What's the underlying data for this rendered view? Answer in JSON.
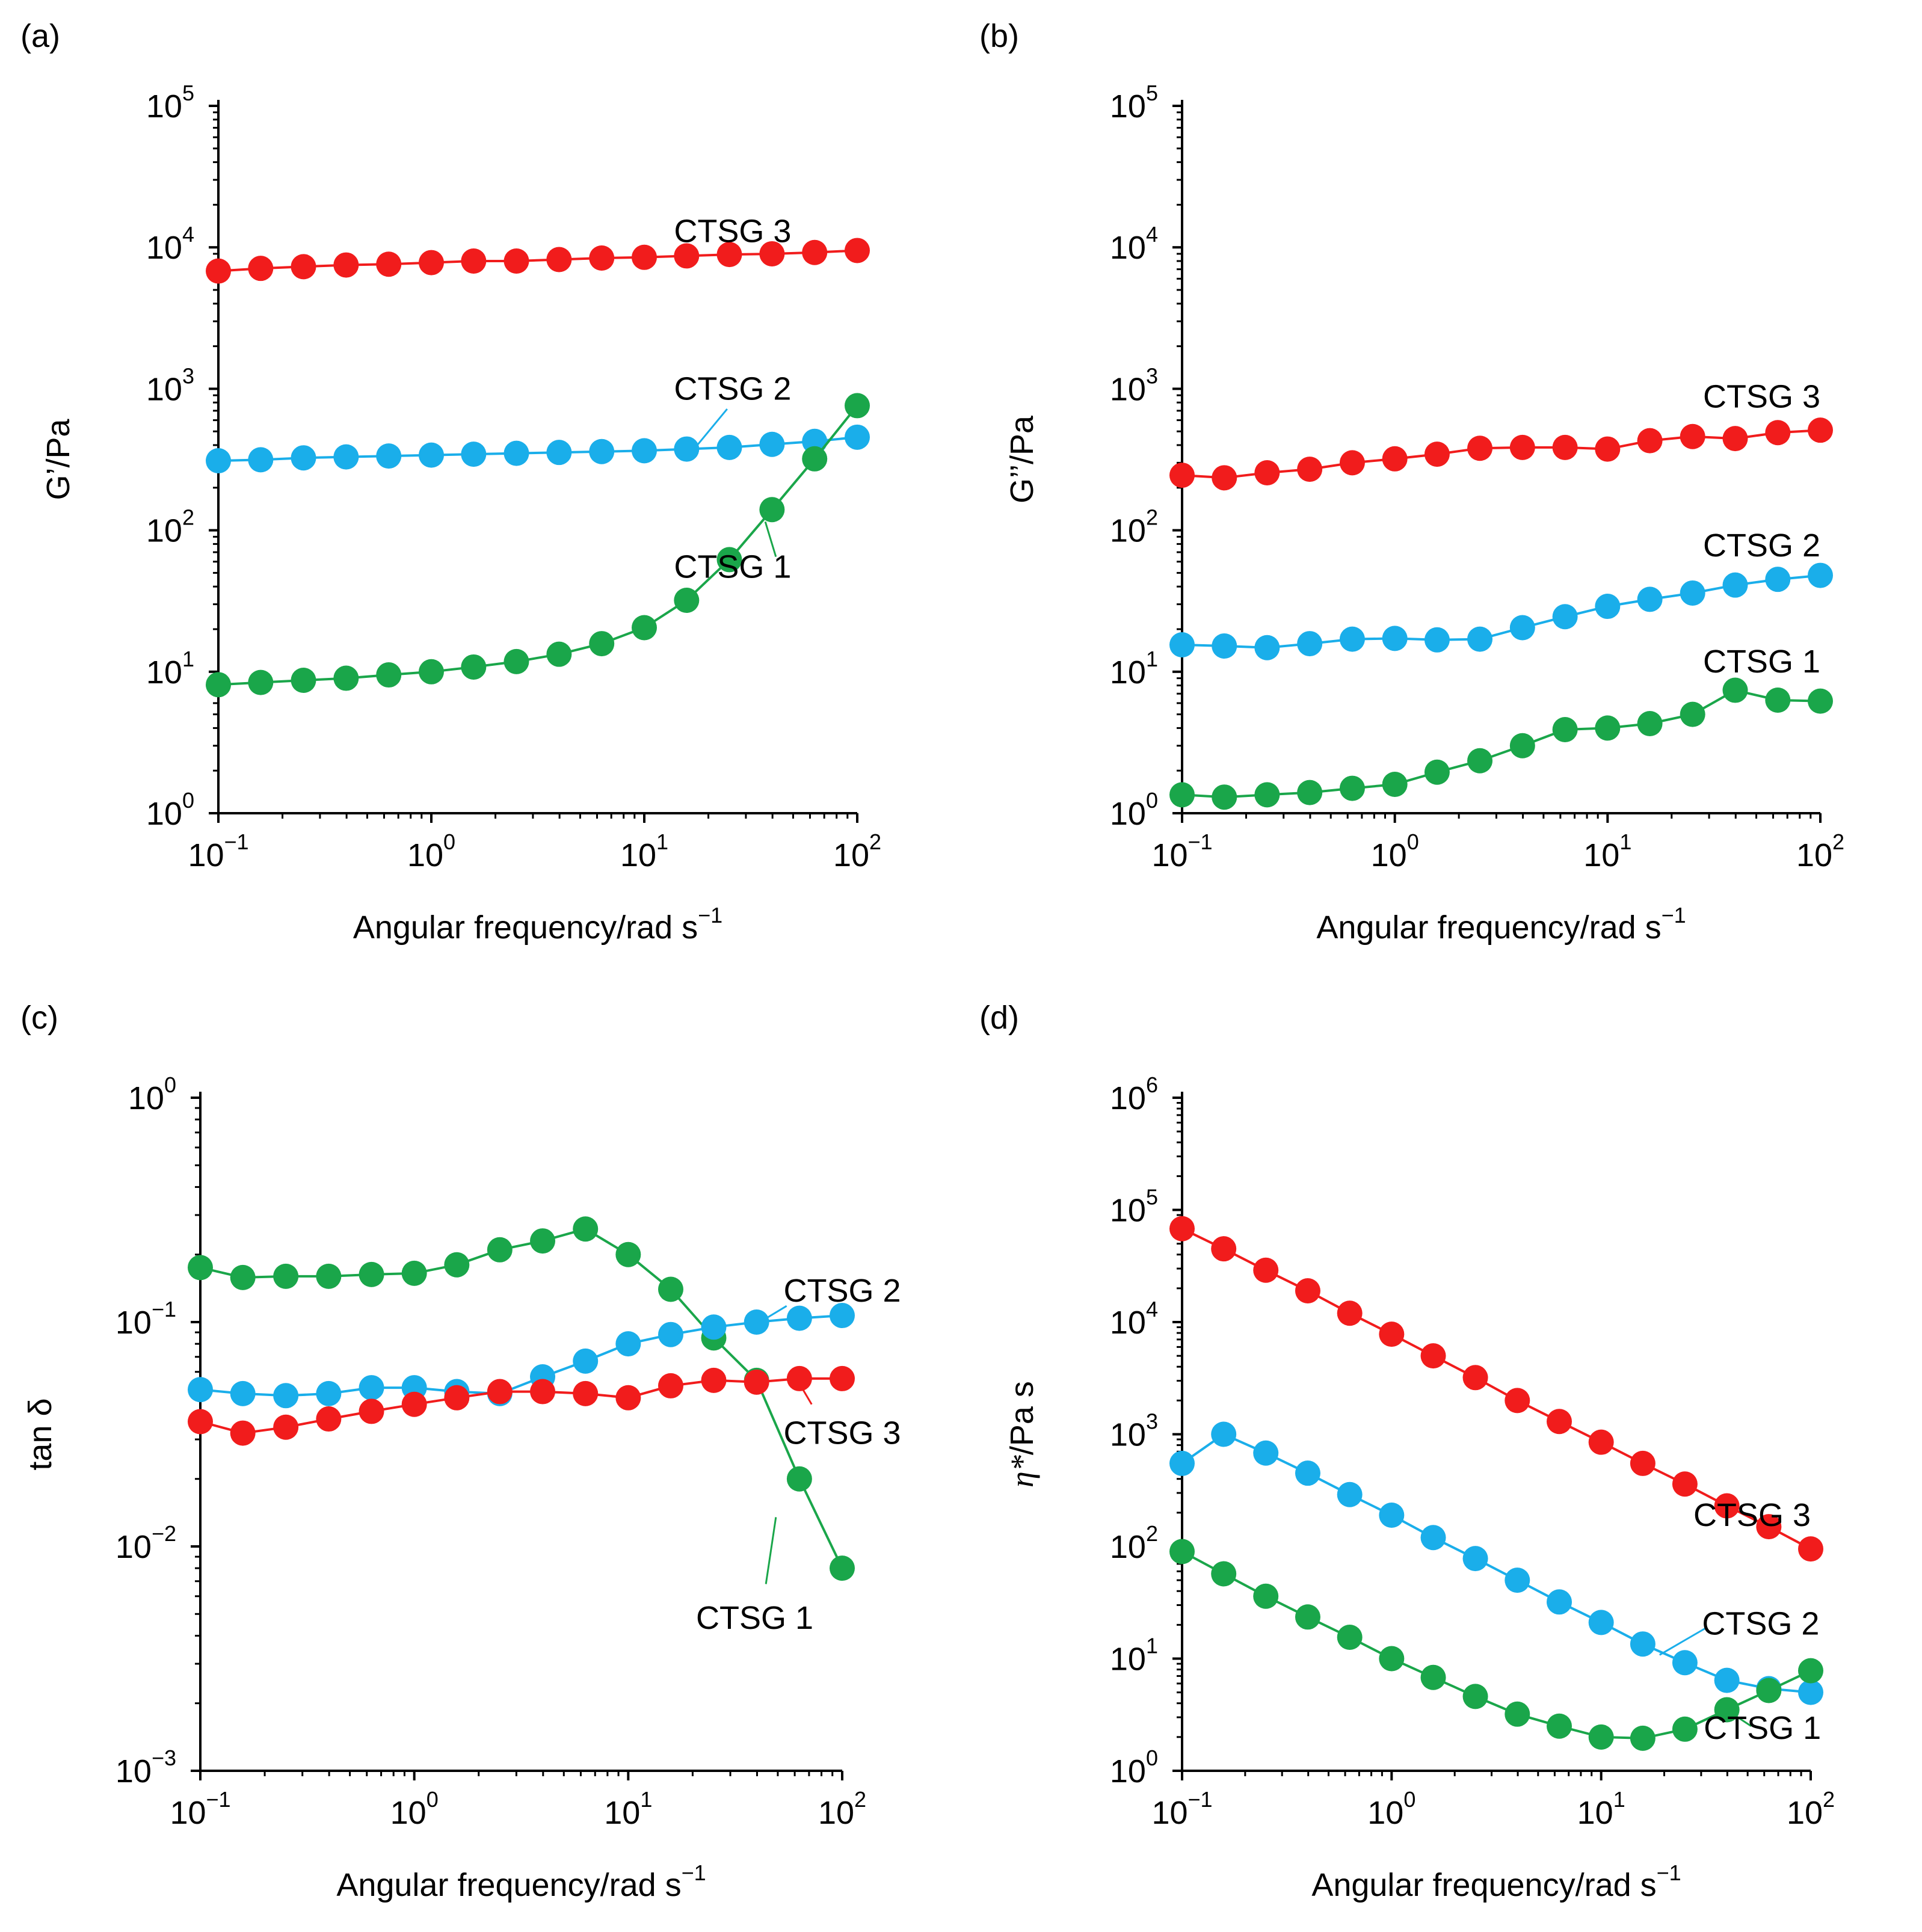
{
  "figure": {
    "colors": {
      "CTSG 1": "#1aa64a",
      "CTSG 2": "#1aaeea",
      "CTSG 3": "#f11c1c",
      "axis": "#000000"
    },
    "x_ticks": [
      {
        "base": "10",
        "exp": "−1"
      },
      {
        "base": "10",
        "exp": "0"
      },
      {
        "base": "10",
        "exp": "1"
      },
      {
        "base": "10",
        "exp": "2"
      }
    ]
  },
  "chart_data": [
    {
      "panel": "(a)",
      "type": "line",
      "xlabel": "Angular frequency/rad s",
      "xlabel_sup": "−1",
      "ylabel": "G’/Pa",
      "ylabel_italic": "",
      "x_scale": "log",
      "y_scale": "log",
      "xlim": [
        0.1,
        100
      ],
      "ylim": [
        1,
        100000
      ],
      "y_ticks": [
        {
          "base": "10",
          "exp": "0"
        },
        {
          "base": "10",
          "exp": "1"
        },
        {
          "base": "10",
          "exp": "2"
        },
        {
          "base": "10",
          "exp": "3"
        },
        {
          "base": "10",
          "exp": "4"
        },
        {
          "base": "10",
          "exp": "5"
        }
      ],
      "x": [
        0.1,
        0.158,
        0.251,
        0.398,
        0.631,
        1,
        1.58,
        2.51,
        3.98,
        6.31,
        10,
        15.8,
        25.1,
        39.8,
        63.1,
        100
      ],
      "series": [
        {
          "name": "CTSG 3",
          "values": [
            6800,
            7100,
            7300,
            7500,
            7600,
            7800,
            8000,
            8000,
            8200,
            8400,
            8500,
            8700,
            8900,
            9000,
            9200,
            9500
          ]
        },
        {
          "name": "CTSG 2",
          "values": [
            310,
            315,
            325,
            330,
            335,
            340,
            345,
            350,
            355,
            360,
            365,
            375,
            385,
            405,
            425,
            455
          ]
        },
        {
          "name": "CTSG 1",
          "values": [
            8.1,
            8.4,
            8.7,
            9.0,
            9.5,
            10.0,
            10.8,
            11.8,
            13.3,
            15.8,
            20.5,
            32,
            62,
            140,
            320,
            760
          ]
        }
      ],
      "labels": [
        {
          "series": "CTSG 3",
          "text": "CTSG 3",
          "tx": 26,
          "ty": 13000,
          "anchor": "middle"
        },
        {
          "series": "CTSG 2",
          "text": "CTSG 2",
          "tx": 26,
          "ty": 1000,
          "anchor": "middle",
          "leader": [
            [
              24.5,
              720
            ],
            [
              17.5,
              390
            ]
          ]
        },
        {
          "series": "CTSG 1",
          "text": "CTSG 1",
          "tx": 26,
          "ty": 55,
          "anchor": "middle",
          "leader": [
            [
              37,
              115
            ],
            [
              41.5,
              65
            ]
          ]
        }
      ]
    },
    {
      "panel": "(b)",
      "type": "line",
      "xlabel": "Angular frequency/rad s",
      "xlabel_sup": "−1",
      "ylabel": "G’’/Pa",
      "ylabel_italic": "",
      "x_scale": "log",
      "y_scale": "log",
      "xlim": [
        0.1,
        100
      ],
      "ylim": [
        1,
        100000
      ],
      "y_ticks": [
        {
          "base": "10",
          "exp": "0"
        },
        {
          "base": "10",
          "exp": "1"
        },
        {
          "base": "10",
          "exp": "2"
        },
        {
          "base": "10",
          "exp": "3"
        },
        {
          "base": "10",
          "exp": "4"
        },
        {
          "base": "10",
          "exp": "5"
        }
      ],
      "x": [
        0.1,
        0.158,
        0.251,
        0.398,
        0.631,
        1,
        1.58,
        2.51,
        3.98,
        6.31,
        10,
        15.8,
        25.1,
        39.8,
        63.1,
        100
      ],
      "series": [
        {
          "name": "CTSG 3",
          "values": [
            245,
            235,
            255,
            270,
            300,
            320,
            345,
            380,
            385,
            385,
            375,
            430,
            460,
            445,
            490,
            510
          ]
        },
        {
          "name": "CTSG 2",
          "values": [
            15.5,
            15.2,
            14.8,
            15.8,
            17,
            17.2,
            16.8,
            17,
            20.5,
            24.5,
            29,
            32.5,
            36,
            41,
            45,
            48
          ]
        },
        {
          "name": "CTSG 1",
          "values": [
            1.35,
            1.3,
            1.35,
            1.4,
            1.5,
            1.6,
            1.95,
            2.35,
            3.0,
            3.9,
            4.0,
            4.3,
            5.0,
            7.4,
            6.3,
            6.2
          ]
        }
      ],
      "labels": [
        {
          "series": "CTSG 3",
          "text": "CTSG 3",
          "tx": 100,
          "ty": 880,
          "anchor": "end"
        },
        {
          "series": "CTSG 2",
          "text": "CTSG 2",
          "tx": 100,
          "ty": 78,
          "anchor": "end"
        },
        {
          "series": "CTSG 1",
          "text": "CTSG 1",
          "tx": 100,
          "ty": 11.8,
          "anchor": "end"
        }
      ]
    },
    {
      "panel": "(c)",
      "type": "line",
      "xlabel": "Angular frequency/rad s",
      "xlabel_sup": "−1",
      "ylabel": "tan δ",
      "ylabel_italic": "",
      "x_scale": "log",
      "y_scale": "log",
      "xlim": [
        0.1,
        100
      ],
      "ylim": [
        0.001,
        1
      ],
      "y_ticks": [
        {
          "base": "10",
          "exp": "−3"
        },
        {
          "base": "10",
          "exp": "−2"
        },
        {
          "base": "10",
          "exp": "−1"
        },
        {
          "base": "10",
          "exp": "0"
        }
      ],
      "x": [
        0.1,
        0.158,
        0.251,
        0.398,
        0.631,
        1,
        1.58,
        2.51,
        3.98,
        6.31,
        10,
        15.8,
        25.1,
        39.8,
        63.1,
        100
      ],
      "series": [
        {
          "name": "CTSG 1",
          "values": [
            0.175,
            0.158,
            0.16,
            0.16,
            0.163,
            0.165,
            0.18,
            0.21,
            0.23,
            0.26,
            0.2,
            0.14,
            0.085,
            0.055,
            0.02,
            0.008
          ]
        },
        {
          "name": "CTSG 2",
          "values": [
            0.05,
            0.048,
            0.047,
            0.048,
            0.051,
            0.051,
            0.049,
            0.048,
            0.057,
            0.067,
            0.08,
            0.088,
            0.095,
            0.1,
            0.104,
            0.107
          ]
        },
        {
          "name": "CTSG 3",
          "values": [
            0.036,
            0.032,
            0.034,
            0.037,
            0.04,
            0.043,
            0.046,
            0.049,
            0.049,
            0.048,
            0.046,
            0.052,
            0.055,
            0.054,
            0.056,
            0.056
          ]
        }
      ],
      "labels": [
        {
          "series": "CTSG 2",
          "text": "CTSG 2",
          "tx": 100,
          "ty": 0.138,
          "anchor": "middle",
          "leader": [
            [
              55,
              0.118
            ],
            [
              37,
              0.094
            ]
          ]
        },
        {
          "series": "CTSG 3",
          "text": "CTSG 3",
          "tx": 100,
          "ty": 0.032,
          "anchor": "middle",
          "leader": [
            [
              64,
              0.052
            ],
            [
              72,
              0.043
            ]
          ]
        },
        {
          "series": "CTSG 1",
          "text": "CTSG 1",
          "tx": 39,
          "ty": 0.0048,
          "anchor": "middle",
          "leader": [
            [
              49,
              0.0135
            ],
            [
              44,
              0.0068
            ]
          ]
        }
      ]
    },
    {
      "panel": "(d)",
      "type": "line",
      "xlabel": "Angular frequency/rad s",
      "xlabel_sup": "−1",
      "ylabel": "/Pa s",
      "ylabel_italic": "η*",
      "x_scale": "log",
      "y_scale": "log",
      "xlim": [
        0.1,
        100
      ],
      "ylim": [
        1,
        1000000
      ],
      "y_ticks": [
        {
          "base": "10",
          "exp": "0"
        },
        {
          "base": "10",
          "exp": "1"
        },
        {
          "base": "10",
          "exp": "2"
        },
        {
          "base": "10",
          "exp": "3"
        },
        {
          "base": "10",
          "exp": "4"
        },
        {
          "base": "10",
          "exp": "5"
        },
        {
          "base": "10",
          "exp": "6"
        }
      ],
      "x": [
        0.1,
        0.158,
        0.251,
        0.398,
        0.631,
        1,
        1.58,
        2.51,
        3.98,
        6.31,
        10,
        15.8,
        25.1,
        39.8,
        63.1,
        100
      ],
      "series": [
        {
          "name": "CTSG 3",
          "values": [
            68000,
            45000,
            29000,
            19000,
            12000,
            7800,
            5000,
            3200,
            2000,
            1300,
            850,
            550,
            360,
            230,
            150,
            95
          ]
        },
        {
          "name": "CTSG 2",
          "values": [
            550,
            1000,
            680,
            450,
            290,
            190,
            120,
            78,
            50,
            32,
            21,
            13.5,
            9.2,
            6.4,
            5.4,
            5.0
          ]
        },
        {
          "name": "CTSG 1",
          "values": [
            90,
            57,
            36,
            23.5,
            15.5,
            10,
            6.8,
            4.6,
            3.2,
            2.5,
            2.0,
            1.95,
            2.35,
            3.5,
            5.2,
            7.8
          ]
        }
      ],
      "labels": [
        {
          "series": "CTSG 3",
          "text": "CTSG 3",
          "tx": 100,
          "ty": 190,
          "anchor": "end"
        },
        {
          "series": "CTSG 2",
          "text": "CTSG 2",
          "tx": 110,
          "ty": 20.5,
          "anchor": "end",
          "leader": [
            [
              32,
              19
            ],
            [
              19,
              10.8
            ]
          ]
        },
        {
          "series": "CTSG 1",
          "text": "CTSG 1",
          "tx": 112,
          "ty": 2.4,
          "anchor": "end",
          "leader": [
            [
              42,
              3.25
            ],
            [
              52,
              2.5
            ]
          ]
        }
      ]
    }
  ]
}
